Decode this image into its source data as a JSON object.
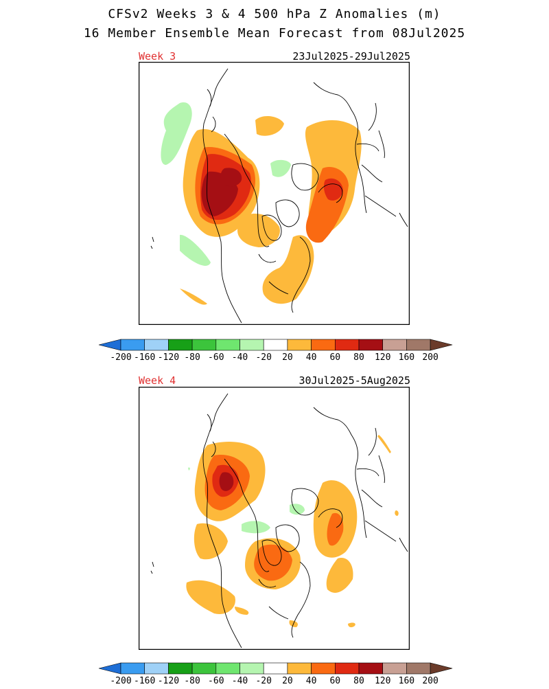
{
  "header": {
    "title": "CFSv2 Weeks 3 & 4 500 hPa Z Anomalies (m)",
    "subtitle": "16 Member Ensemble Mean Forecast from 08Jul2025"
  },
  "panels": [
    {
      "label": "Week 3",
      "dates": "23Jul2025-29Jul2025"
    },
    {
      "label": "Week 4",
      "dates": "30Jul2025-5Aug2025"
    }
  ],
  "colorbar": {
    "tick_labels": [
      "-200",
      "-160",
      "-120",
      "-80",
      "-60",
      "-40",
      "-20",
      "20",
      "40",
      "60",
      "80",
      "120",
      "160",
      "200"
    ],
    "colors": [
      "#1e6ed6",
      "#3a9cf0",
      "#9fd1f7",
      "#17a017",
      "#3cc43c",
      "#6fe66f",
      "#b5f5b0",
      "#ffffff",
      "#fdb93b",
      "#fa6a12",
      "#e02a12",
      "#a50f14",
      "#c8a094",
      "#a07868",
      "#6b3b2a"
    ]
  },
  "colors": {
    "title_text": "#000000",
    "week_label": "#e03030",
    "map_border": "#000000"
  }
}
